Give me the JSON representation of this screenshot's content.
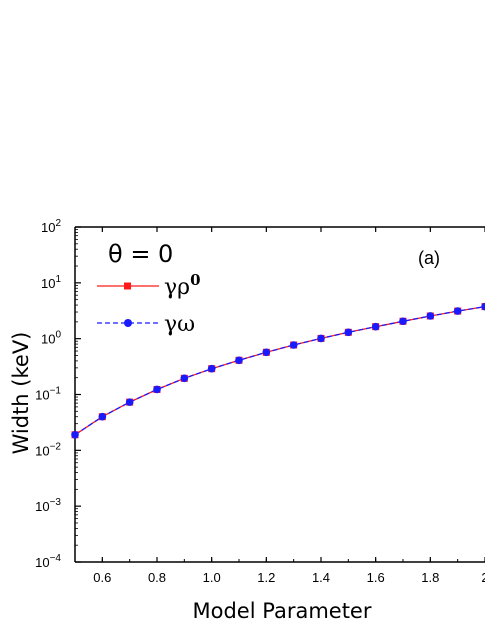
{
  "chart_data": {
    "type": "line",
    "xlabel": "Model Parameter",
    "ylabel": "Width (keV)",
    "xlim": [
      0.5,
      2.0
    ],
    "ylim_log10": [
      -4,
      2
    ],
    "y_scale": "log",
    "grid": false,
    "x_ticks": [
      "0.6",
      "0.8",
      "1.0",
      "1.2",
      "1.4",
      "1.6",
      "1.8",
      "2"
    ],
    "y_ticks": [
      {
        "base": "10",
        "exp": "2"
      },
      {
        "base": "10",
        "exp": "1"
      },
      {
        "base": "10",
        "exp": "0"
      },
      {
        "base": "10",
        "exp": "−1"
      },
      {
        "base": "10",
        "exp": "−2"
      },
      {
        "base": "10",
        "exp": "−3"
      },
      {
        "base": "10",
        "exp": "−4"
      }
    ],
    "annotations": {
      "theta": "θ = 0",
      "panel": "(a)"
    },
    "legend_placement": "top-left",
    "x": [
      0.5,
      0.6,
      0.7,
      0.8,
      0.9,
      1.0,
      1.1,
      1.2,
      1.3,
      1.4,
      1.5,
      1.6,
      1.7,
      1.8,
      1.9,
      2.0
    ],
    "series": [
      {
        "name_base": "γρ",
        "name_sup": "0",
        "color": "#ff1a1a",
        "line": "solid",
        "marker": "square",
        "values": [
          0.019,
          0.04,
          0.073,
          0.123,
          0.195,
          0.29,
          0.41,
          0.57,
          0.77,
          1.01,
          1.3,
          1.64,
          2.05,
          2.55,
          3.12,
          3.75
        ]
      },
      {
        "name_base": "γω",
        "color": "#1a1aff",
        "line": "dashed",
        "marker": "circle",
        "values": [
          0.019,
          0.04,
          0.073,
          0.123,
          0.195,
          0.29,
          0.41,
          0.57,
          0.77,
          1.01,
          1.3,
          1.64,
          2.05,
          2.55,
          3.12,
          3.75
        ]
      }
    ]
  }
}
